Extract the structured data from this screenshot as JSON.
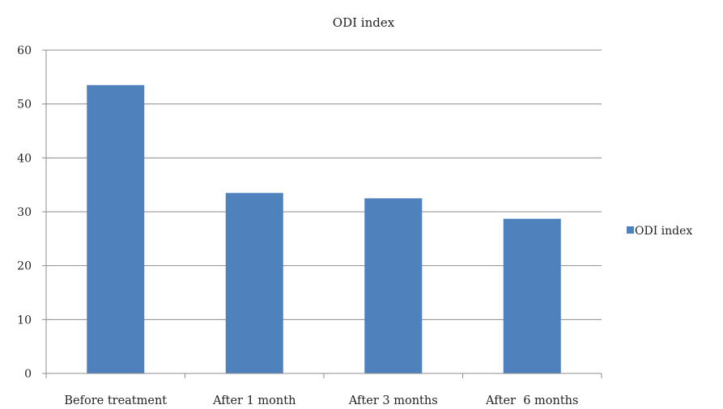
{
  "chart_data": {
    "type": "bar",
    "title": "ODI index",
    "categories": [
      "Before treatment",
      "After 1 month",
      "After 3 months",
      "After  6 months"
    ],
    "series": [
      {
        "name": "ODI index",
        "values": [
          53.5,
          33.5,
          32.5,
          28.7
        ]
      }
    ],
    "ylim": [
      0,
      60
    ],
    "yticks": [
      "0",
      "10",
      "20",
      "30",
      "40",
      "50",
      "60"
    ],
    "grid": true,
    "legend_position": "right",
    "bar_color": "#4F81BD"
  }
}
